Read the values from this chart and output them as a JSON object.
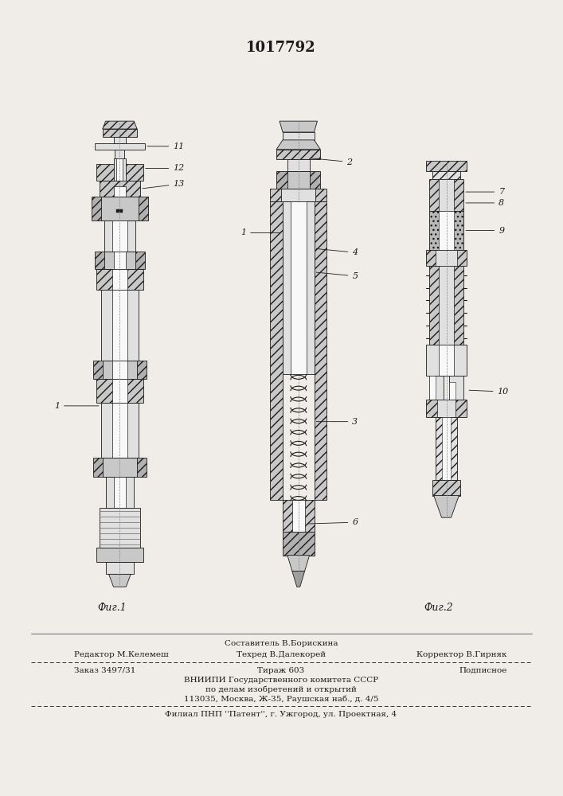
{
  "patent_number": "1017792",
  "bg": "#f0ede8",
  "footer": {
    "comp": "Составитель В.Борискина",
    "editor": "Редактор М.Келемеш",
    "tech": "Техред В.Далекорей",
    "corr": "Корректор В.Гирняк",
    "order": "Заказ 3497/31",
    "copies": "Тираж 603",
    "sub": "Подписное",
    "inst1": "ВНИИПИ Государственного комитета СССР",
    "inst2": "по делам изобретений и открытий",
    "inst3": "113035, Москва, Ж-35, Раушская наб., д. 4/5",
    "branch": "Филиал ПНП ''Патент'', г. Ужгород, ул. Проектная, 4"
  },
  "fig1_caption": "Фиг.1",
  "fig2_caption": "Фиг.2",
  "lc": "#1a1a1a",
  "hc": "#888888"
}
